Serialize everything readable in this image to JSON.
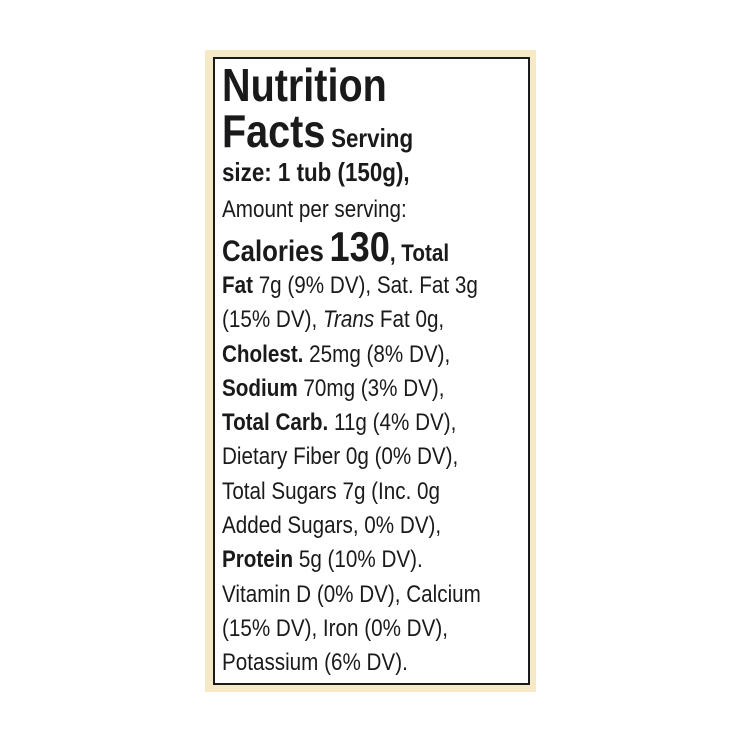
{
  "label": {
    "lines": [
      [
        "Nutrition"
      ],
      [
        "Facts",
        "Serving"
      ],
      [
        "size: 1 tub (150g),"
      ],
      [
        "Amount per serving:"
      ],
      [
        "Calories",
        "130",
        ", Total"
      ],
      [
        "Fat",
        "7g (9% DV), Sat. Fat 3g"
      ],
      [
        "(15% DV),",
        "Trans",
        "Fat 0g,"
      ],
      [
        "Cholest.",
        "25mg (8% DV),"
      ],
      [
        "Sodium",
        "70mg (3% DV),"
      ],
      [
        "Total Carb.",
        "11g (4% DV),"
      ],
      [
        "Dietary Fiber 0g (0% DV),"
      ],
      [
        "Total Sugars 7g (Inc. 0g"
      ],
      [
        "Added Sugars, 0% DV),"
      ],
      [
        "Protein",
        "5g (10% DV)."
      ],
      [
        "Vitamin D (0% DV), Calcium"
      ],
      [
        "(15% DV), Iron (0% DV),"
      ],
      [
        "Potassium (6% DV)."
      ]
    ]
  }
}
